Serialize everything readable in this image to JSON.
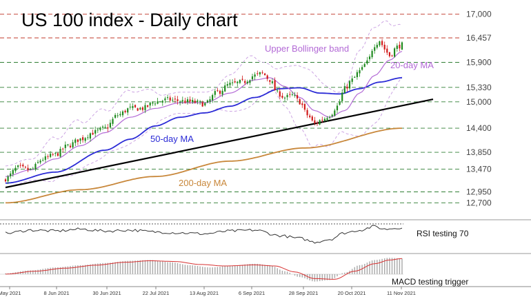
{
  "chart_data": {
    "type": "candlestick",
    "title": "US 100 index - Daily chart",
    "levels": [
      "17,000",
      "16,457",
      "15,900",
      "15,330",
      "15,000",
      "14,400",
      "13,850",
      "13,470",
      "12,950",
      "12,700"
    ],
    "level_values": [
      17000,
      16457,
      15900,
      15330,
      15000,
      14400,
      13850,
      13470,
      12950,
      12700
    ],
    "level_line_colors": [
      "#c0392b",
      "#c0392b",
      "#2e7d32",
      "#2e7d32",
      "#2e7d32",
      "#2e7d32",
      "#2e7d32",
      "#2e7d32",
      "#2e7d32",
      "#2e7d32"
    ],
    "ylim": [
      12550,
      17100
    ],
    "x_ticks": [
      "May 2021",
      "8 Jun 2021",
      "30 Jun 2021",
      "22 Jul 2021",
      "13 Aug 2021",
      "6 Sep 2021",
      "28 Sep 2021",
      "20 Oct 2021",
      "11 Nov 2021"
    ],
    "annotations": {
      "upper_band": "Upper Bollinger band",
      "ma20": "20-day MA",
      "ma50": "50-day MA",
      "ma200": "200-day MA",
      "rsi": "RSI testing 70",
      "macd": "MACD testing trigger"
    },
    "close_keypoints": [
      [
        0,
        13250
      ],
      [
        5,
        13500
      ],
      [
        10,
        13450
      ],
      [
        15,
        13700
      ],
      [
        20,
        13800
      ],
      [
        25,
        14000
      ],
      [
        30,
        14150
      ],
      [
        35,
        14300
      ],
      [
        40,
        14400
      ],
      [
        45,
        14700
      ],
      [
        50,
        14850
      ],
      [
        55,
        14850
      ],
      [
        60,
        15000
      ],
      [
        65,
        15050
      ],
      [
        70,
        15020
      ],
      [
        75,
        15000
      ],
      [
        80,
        14950
      ],
      [
        85,
        15220
      ],
      [
        90,
        15400
      ],
      [
        95,
        15450
      ],
      [
        100,
        15600
      ],
      [
        103,
        15650
      ],
      [
        106,
        15500
      ],
      [
        109,
        15200
      ],
      [
        112,
        15100
      ],
      [
        115,
        15150
      ],
      [
        118,
        15000
      ],
      [
        121,
        14700
      ],
      [
        124,
        14500
      ],
      [
        127,
        14600
      ],
      [
        130,
        14700
      ],
      [
        133,
        14900
      ],
      [
        136,
        15300
      ],
      [
        139,
        15500
      ],
      [
        142,
        15700
      ],
      [
        145,
        15900
      ],
      [
        148,
        16300
      ],
      [
        150,
        16400
      ],
      [
        152,
        16200
      ],
      [
        154,
        16050
      ],
      [
        157,
        16250
      ],
      [
        159,
        16300
      ]
    ],
    "ma20_keypoints": [
      [
        0,
        13300
      ],
      [
        10,
        13450
      ],
      [
        20,
        13700
      ],
      [
        30,
        14000
      ],
      [
        40,
        14300
      ],
      [
        50,
        14650
      ],
      [
        60,
        14850
      ],
      [
        70,
        14980
      ],
      [
        80,
        14980
      ],
      [
        90,
        15200
      ],
      [
        100,
        15500
      ],
      [
        106,
        15550
      ],
      [
        112,
        15350
      ],
      [
        118,
        15100
      ],
      [
        124,
        14800
      ],
      [
        130,
        14650
      ],
      [
        136,
        14800
      ],
      [
        142,
        15200
      ],
      [
        148,
        15600
      ],
      [
        154,
        15950
      ],
      [
        159,
        16150
      ]
    ],
    "ma50_keypoints": [
      [
        0,
        13150
      ],
      [
        20,
        13400
      ],
      [
        40,
        13900
      ],
      [
        50,
        14150
      ],
      [
        60,
        14450
      ],
      [
        70,
        14650
      ],
      [
        80,
        14750
      ],
      [
        90,
        14900
      ],
      [
        100,
        15100
      ],
      [
        110,
        15300
      ],
      [
        118,
        15320
      ],
      [
        126,
        15200
      ],
      [
        134,
        15180
      ],
      [
        142,
        15300
      ],
      [
        150,
        15450
      ],
      [
        159,
        15550
      ]
    ],
    "ma200_keypoints": [
      [
        0,
        12700
      ],
      [
        30,
        13000
      ],
      [
        60,
        13300
      ],
      [
        90,
        13650
      ],
      [
        120,
        13950
      ],
      [
        159,
        14400
      ]
    ],
    "trendline": [
      [
        0,
        13050
      ],
      [
        159,
        15000
      ]
    ],
    "rsi_range": [
      20,
      80
    ],
    "rsi_level": 70,
    "rsi_keypoints": [
      [
        0,
        55
      ],
      [
        10,
        62
      ],
      [
        20,
        60
      ],
      [
        30,
        64
      ],
      [
        40,
        60
      ],
      [
        50,
        62
      ],
      [
        60,
        58
      ],
      [
        70,
        56
      ],
      [
        80,
        54
      ],
      [
        90,
        60
      ],
      [
        100,
        62
      ],
      [
        110,
        50
      ],
      [
        118,
        44
      ],
      [
        124,
        36
      ],
      [
        130,
        42
      ],
      [
        136,
        56
      ],
      [
        142,
        62
      ],
      [
        148,
        70
      ],
      [
        152,
        64
      ],
      [
        156,
        66
      ],
      [
        159,
        68
      ]
    ],
    "macd_range": [
      -0.7,
      1.2
    ],
    "macd_keypoints": [
      [
        0,
        0.05
      ],
      [
        10,
        0.25
      ],
      [
        20,
        0.45
      ],
      [
        30,
        0.6
      ],
      [
        40,
        0.75
      ],
      [
        50,
        0.9
      ],
      [
        58,
        0.95
      ],
      [
        66,
        0.8
      ],
      [
        74,
        0.6
      ],
      [
        82,
        0.45
      ],
      [
        90,
        0.55
      ],
      [
        100,
        0.7
      ],
      [
        106,
        0.6
      ],
      [
        112,
        0.2
      ],
      [
        118,
        -0.2
      ],
      [
        124,
        -0.5
      ],
      [
        130,
        -0.4
      ],
      [
        136,
        0.1
      ],
      [
        142,
        0.6
      ],
      [
        148,
        0.95
      ],
      [
        154,
        1.1
      ],
      [
        159,
        1.05
      ]
    ],
    "signal_keypoints": [
      [
        0,
        0.0
      ],
      [
        12,
        0.2
      ],
      [
        24,
        0.4
      ],
      [
        36,
        0.6
      ],
      [
        48,
        0.8
      ],
      [
        58,
        0.9
      ],
      [
        68,
        0.85
      ],
      [
        78,
        0.65
      ],
      [
        88,
        0.55
      ],
      [
        100,
        0.62
      ],
      [
        108,
        0.55
      ],
      [
        116,
        0.15
      ],
      [
        124,
        -0.3
      ],
      [
        132,
        -0.35
      ],
      [
        140,
        0.2
      ],
      [
        148,
        0.7
      ],
      [
        154,
        0.95
      ],
      [
        159,
        1.05
      ]
    ],
    "candle_colors": {
      "up": "#1e8a1e",
      "down": "#d11a1a"
    },
    "line_colors": {
      "ma20": "#b36ad6",
      "ma50": "#2b2bd6",
      "ma200": "#c8873a",
      "trendline": "#000000",
      "band": "#c79be0",
      "rsi": "#333333",
      "macd": "#d63030",
      "histogram": "#a8a8a8"
    }
  }
}
